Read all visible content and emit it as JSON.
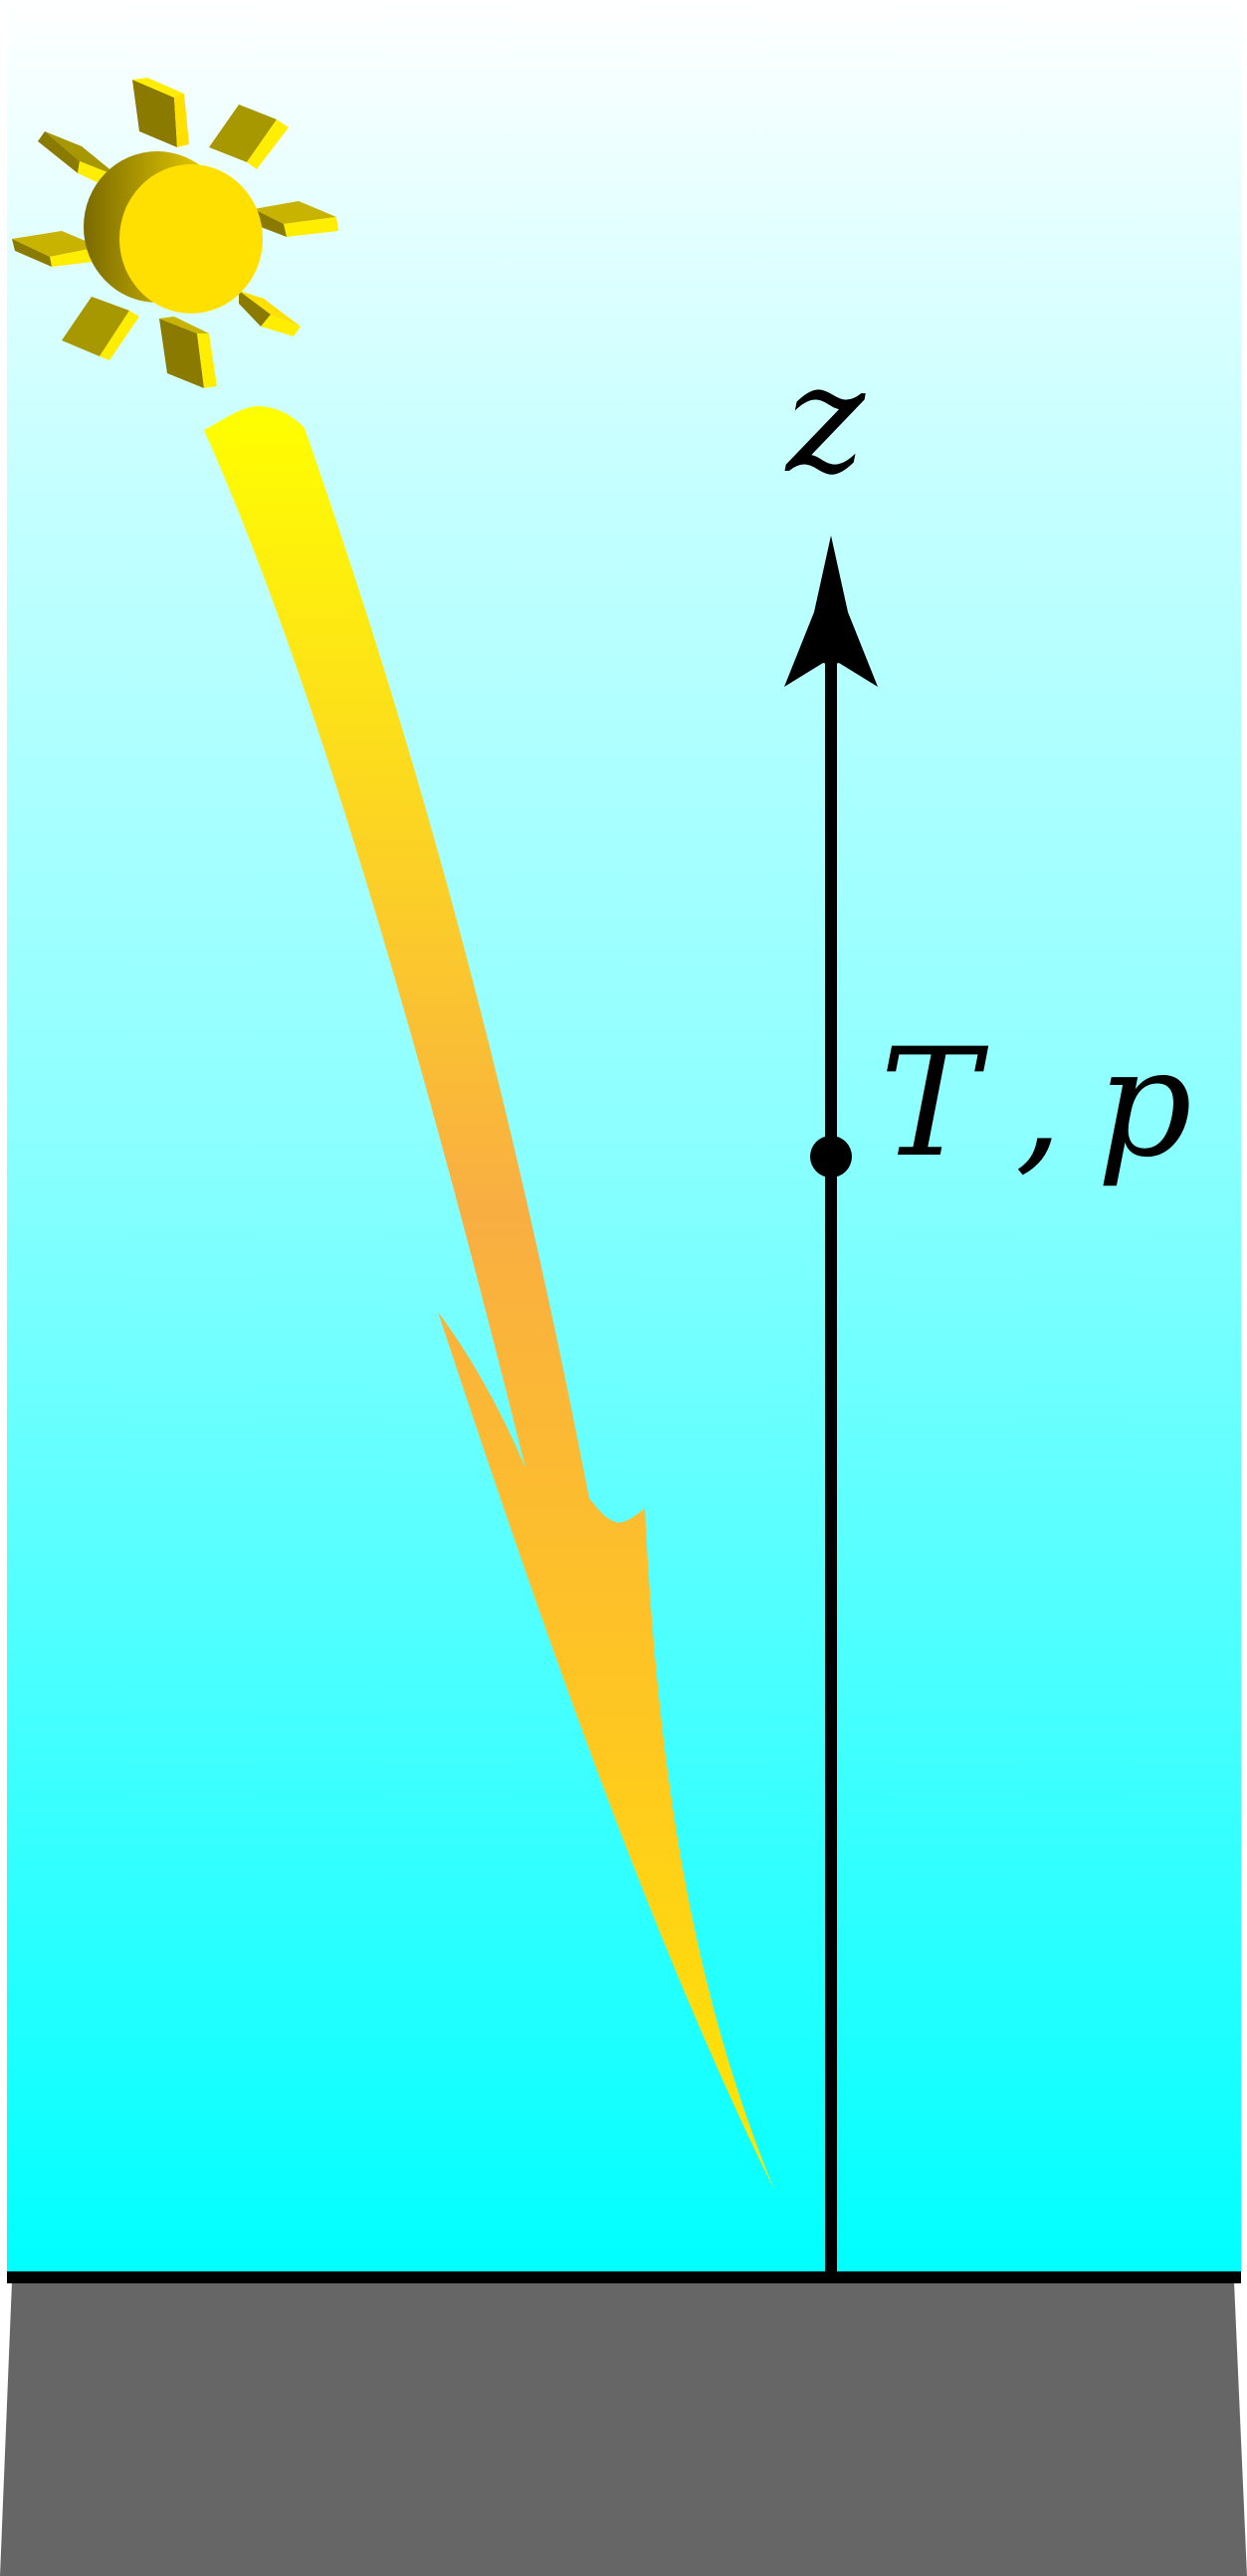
{
  "diagram": {
    "axis_label": "z",
    "point_labels": [
      "T",
      ",",
      "p"
    ]
  },
  "colors": {
    "sky_top": "#ffffff",
    "sky_mid": "#9effff",
    "sky_bottom": "#00ffff",
    "ground": "#666666",
    "surface_line": "#000000",
    "axis": "#000000",
    "sun_face": "#ffe000",
    "sun_shadow": "#8a7a00",
    "ray_dark": "#a89800",
    "ray_light": "#ffee00",
    "beam_top": "#ffff00",
    "beam_mid": "#f9b040",
    "beam_bottom": "#ffe010"
  },
  "icons": {
    "sun": "sun-icon",
    "beam": "sunlight-beam-arrow-icon"
  }
}
